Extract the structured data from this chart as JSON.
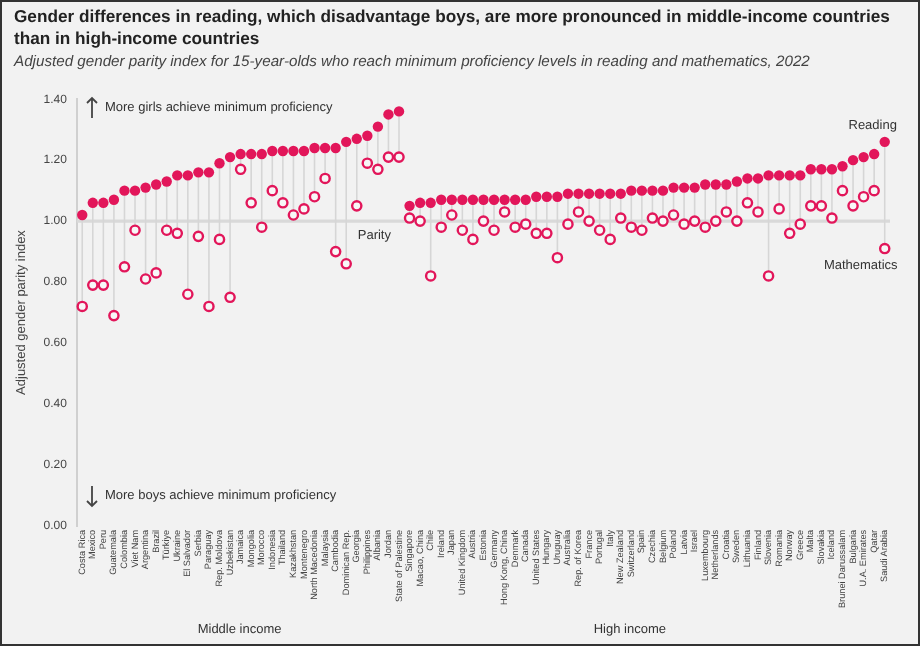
{
  "chart_data": {
    "type": "scatter",
    "title": "Gender differences in reading, which disadvantage boys, are more pronounced in middle-income countries than in high-income countries",
    "subtitle": "Adjusted gender parity index for 15-year-olds who reach minimum proficiency levels in reading and mathematics, 2022",
    "ylabel": "Adjusted gender parity index",
    "categories": [
      "Costa Rica",
      "Mexico",
      "Peru",
      "Guatemala",
      "Colombia",
      "Viet Nam",
      "Argentina",
      "Brazil",
      "Türkiye",
      "Ukraine",
      "El Salvador",
      "Serbia",
      "Paraguay",
      "Rep. Moldova",
      "Uzbekistan",
      "Jamaica",
      "Mongolia",
      "Morocco",
      "Indonesia",
      "Thailand",
      "Kazakhstan",
      "Montenegro",
      "North Macedonia",
      "Malaysia",
      "Cambodia",
      "Dominican Rep.",
      "Georgia",
      "Philippines",
      "Albania",
      "Jordan",
      "State of Palestine",
      "Singapore",
      "Macao, China",
      "Chile",
      "Ireland",
      "Japan",
      "United Kingdom",
      "Austria",
      "Estonia",
      "Germany",
      "Hong Kong, China",
      "Denmark",
      "Canada",
      "United States",
      "Hungary",
      "Uruguay",
      "Australia",
      "Rep. of Korea",
      "France",
      "Portugal",
      "Italy",
      "New Zealand",
      "Switzerland",
      "Spain",
      "Czechia",
      "Belgium",
      "Poland",
      "Latvia",
      "Israel",
      "Luxembourg",
      "Netherlands",
      "Croatia",
      "Sweden",
      "Lithuania",
      "Finland",
      "Slovenia",
      "Romania",
      "Norway",
      "Greece",
      "Malta",
      "Slovakia",
      "Iceland",
      "Brunei Darussalam",
      "Bulgaria",
      "U.A. Emirates",
      "Qatar",
      "Saudi Arabia"
    ],
    "series": [
      {
        "name": "Reading",
        "color": "#e2165a",
        "values": [
          1.02,
          1.06,
          1.06,
          1.07,
          1.1,
          1.1,
          1.11,
          1.12,
          1.13,
          1.15,
          1.15,
          1.16,
          1.16,
          1.19,
          1.21,
          1.22,
          1.22,
          1.22,
          1.23,
          1.23,
          1.23,
          1.23,
          1.24,
          1.24,
          1.24,
          1.26,
          1.27,
          1.28,
          1.31,
          1.35,
          1.36,
          1.05,
          1.06,
          1.06,
          1.07,
          1.07,
          1.07,
          1.07,
          1.07,
          1.07,
          1.07,
          1.07,
          1.07,
          1.08,
          1.08,
          1.08,
          1.09,
          1.09,
          1.09,
          1.09,
          1.09,
          1.09,
          1.1,
          1.1,
          1.1,
          1.1,
          1.11,
          1.11,
          1.11,
          1.12,
          1.12,
          1.12,
          1.13,
          1.14,
          1.14,
          1.15,
          1.15,
          1.15,
          1.15,
          1.17,
          1.17,
          1.17,
          1.18,
          1.2,
          1.21,
          1.22,
          1.26
        ]
      },
      {
        "name": "Mathematics",
        "color": "#e2165a",
        "values": [
          0.72,
          0.79,
          0.79,
          0.69,
          0.85,
          0.97,
          0.81,
          0.83,
          0.97,
          0.96,
          0.76,
          0.95,
          0.72,
          0.94,
          0.75,
          1.17,
          1.06,
          0.98,
          1.1,
          1.06,
          1.02,
          1.04,
          1.08,
          1.14,
          0.9,
          0.86,
          1.05,
          1.19,
          1.17,
          1.21,
          1.21,
          1.01,
          1.0,
          0.82,
          0.98,
          1.02,
          0.97,
          0.94,
          1.0,
          0.97,
          1.03,
          0.98,
          0.99,
          0.96,
          0.96,
          0.88,
          0.99,
          1.03,
          1.0,
          0.97,
          0.94,
          1.01,
          0.98,
          0.97,
          1.01,
          1.0,
          1.02,
          0.99,
          1.0,
          0.98,
          1.0,
          1.03,
          1.0,
          1.06,
          1.03,
          0.82,
          1.04,
          0.96,
          0.99,
          1.05,
          1.05,
          1.01,
          1.1,
          1.05,
          1.08,
          1.1,
          0.91
        ]
      }
    ],
    "ylim": [
      0,
      1.4
    ],
    "yticks": [
      {
        "value": 0,
        "label": "0.00"
      },
      {
        "value": 0.2,
        "label": "0.20"
      },
      {
        "value": 0.4,
        "label": "0.40"
      },
      {
        "value": 0.6,
        "label": "0.60"
      },
      {
        "value": 0.8,
        "label": "0.80"
      },
      {
        "value": 1.0,
        "label": "1.00"
      },
      {
        "value": 1.2,
        "label": "1.20"
      },
      {
        "value": 1.4,
        "label": "1.40"
      }
    ],
    "ref_lines": [
      {
        "axis": "y",
        "value": 1.0,
        "label": "Parity",
        "color": "#d9d9d9"
      }
    ],
    "annotations": [
      "More girls achieve minimum proficiency",
      "More boys achieve minimum proficiency",
      "Middle income",
      "High income"
    ],
    "grid": false,
    "legend": false,
    "marker": "circle"
  }
}
